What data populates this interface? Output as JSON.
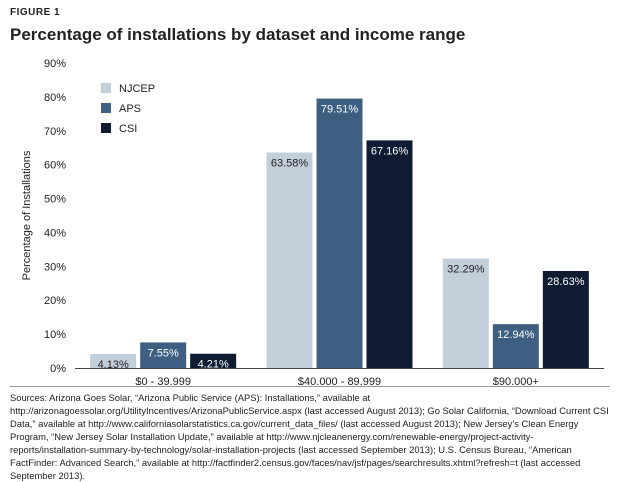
{
  "figure_label": "FIGURE 1",
  "colors": {
    "NJCEP": "#c3cedb",
    "APS": "#3f5f82",
    "CSI": "#0e1b33"
  },
  "chart_data": {
    "type": "bar",
    "title": "Percentage of installations by dataset and income range",
    "ylabel": "Percentage of Installations",
    "xlabel": "",
    "ylim": [
      0,
      90
    ],
    "yticks": [
      "0%",
      "10%",
      "20%",
      "30%",
      "40%",
      "50%",
      "60%",
      "70%",
      "80%",
      "90%"
    ],
    "categories": [
      "$0 - 39,999",
      "$40,000 - 89,999",
      "$90,000+"
    ],
    "series": [
      {
        "name": "NJCEP",
        "values": [
          4.13,
          63.58,
          32.29
        ],
        "labels": [
          "4.13%",
          "63.58%",
          "32.29%"
        ]
      },
      {
        "name": "APS",
        "values": [
          7.55,
          79.51,
          12.94
        ],
        "labels": [
          "7.55%",
          "79.51%",
          "12.94%"
        ]
      },
      {
        "name": "CSI",
        "values": [
          4.21,
          67.16,
          28.63
        ],
        "labels": [
          "4.21%",
          "67.16%",
          "28.63%"
        ]
      }
    ],
    "legend_position": "top-left",
    "grid": false
  },
  "sources": "Sources: Arizona Goes Solar, “Arizona Public Service (APS): Installations,” available at http://arizonagoessolar.org/UtilityIncentives/ArizonaPublicService.aspx (last accessed August 2013); Go Solar California, “Download Current CSI Data,” available at http://www.californiasolarstatistics.ca.gov/current_data_files/ (last accessed August 2013); New Jersey’s Clean Energy Program, “New Jersey Solar Installation Update,” available at http://www.njcleanenergy.com/renewable-energy/project-activity-reports/installation-summary-by-technology/solar-installation-projects (last accessed September 2013); U.S. Census Bureau, “American FactFinder: Advanced Search,” available at http://factfinder2.census.gov/faces/nav/jsf/pages/searchresults.xhtml?refresh=t (last accessed September 2013)."
}
